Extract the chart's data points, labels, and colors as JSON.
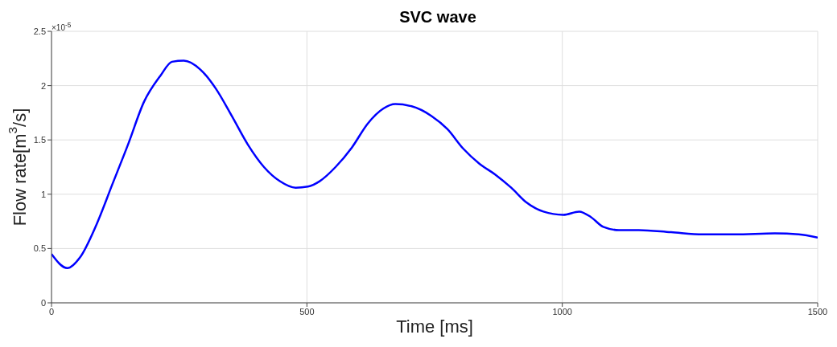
{
  "chart_data": {
    "type": "line",
    "title": "SVC wave",
    "xlabel": "Time [ms]",
    "ylabel": "Flow rate[m$^{3}$/s]",
    "annotations": [
      "×10$^{-5}$"
    ],
    "x": [
      0,
      31,
      56,
      88,
      119,
      150,
      181,
      213,
      236,
      259,
      291,
      322,
      353,
      384,
      416,
      447,
      478,
      502,
      525,
      556,
      588,
      619,
      650,
      673,
      705,
      744,
      775,
      806,
      838,
      869,
      900,
      931,
      963,
      1002,
      1033,
      1056,
      1080,
      1111,
      1150,
      1213,
      1275,
      1338,
      1416,
      1463,
      1500
    ],
    "values": [
      0.45,
      0.32,
      0.42,
      0.72,
      1.09,
      1.46,
      1.85,
      2.09,
      2.22,
      2.23,
      2.15,
      1.97,
      1.72,
      1.46,
      1.25,
      1.12,
      1.06,
      1.07,
      1.12,
      1.25,
      1.43,
      1.65,
      1.79,
      1.83,
      1.81,
      1.72,
      1.6,
      1.42,
      1.28,
      1.18,
      1.06,
      0.92,
      0.84,
      0.81,
      0.84,
      0.79,
      0.7,
      0.67,
      0.67,
      0.65,
      0.63,
      0.63,
      0.64,
      0.63,
      0.6
    ],
    "color": "#0000ff",
    "line_style": "solid",
    "xlim": [
      0,
      1500
    ],
    "xticks": [
      0,
      500,
      1000,
      1500
    ],
    "ylim": [
      0,
      2.5
    ],
    "yticks": [
      0,
      0.5,
      1,
      1.5,
      2,
      2.5
    ],
    "grid": true
  }
}
